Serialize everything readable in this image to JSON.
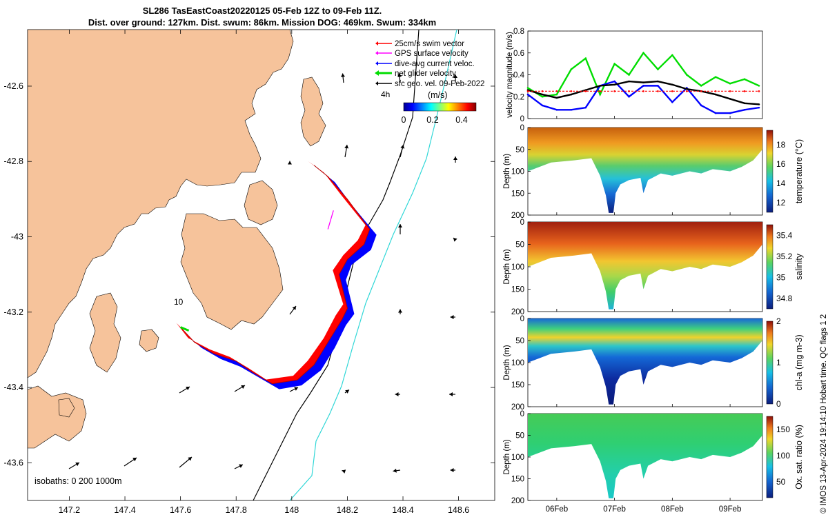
{
  "title": {
    "line1": "SL286 TasEastCoast20220125 05-Feb 12Z to 09-Feb 11Z.",
    "line2": "Dist. over ground: 127km. Dist. swum: 86km. Mission DOG: 469km. Swum: 334km"
  },
  "credit": "© IMOS 13-Apr-2024 19:14:10 Hobart time. QC flags 1  2",
  "colors": {
    "land": "#f6c39b",
    "track": "#0000ff",
    "swim": "#ff0000",
    "gps": "#ff00ff",
    "net": "#00dd00",
    "geo": "#000000",
    "isobath200": "#000000",
    "isobath1000": "#2fd7d7"
  },
  "chart_data": [
    {
      "type": "map",
      "xlim": [
        147.05,
        148.73
      ],
      "ylim": [
        -43.7,
        -42.45
      ],
      "xticks": [
        "147.2",
        "147.4",
        "147.6",
        "147.8",
        "148",
        "148.2",
        "148.4",
        "148.6"
      ],
      "yticks": [
        "-42.6",
        "-42.8",
        "-43",
        "-43.2",
        "-43.4",
        "-43.6"
      ],
      "legend": [
        "25cm/s swim vector",
        "GPS surface velocity",
        "dive-avg current veloc.",
        "net glider velocity",
        "sfc geo. vel. 09-Feb-2022"
      ],
      "legend_note": "4h",
      "colorbar": {
        "label": "(m/s)",
        "ticks": [
          "0",
          "0.2",
          "0.4"
        ],
        "range": [
          0,
          0.5
        ]
      },
      "isobath_label": "isobaths: 0   200  1000m",
      "annotation": "10",
      "glider_track": [
        [
          147.6,
          -43.24
        ],
        [
          147.65,
          -43.28
        ],
        [
          147.72,
          -43.31
        ],
        [
          147.8,
          -43.33
        ],
        [
          147.86,
          -43.36
        ],
        [
          147.93,
          -43.39
        ],
        [
          148.02,
          -43.38
        ],
        [
          148.08,
          -43.34
        ],
        [
          148.13,
          -43.28
        ],
        [
          148.18,
          -43.22
        ],
        [
          148.2,
          -43.19
        ],
        [
          148.17,
          -43.1
        ],
        [
          148.2,
          -43.06
        ],
        [
          148.26,
          -43.02
        ],
        [
          148.28,
          -42.98
        ],
        [
          148.2,
          -42.9
        ],
        [
          148.13,
          -42.84
        ],
        [
          148.08,
          -42.81
        ]
      ]
    },
    {
      "type": "line",
      "ylabel": "velocity magnitude (m/s)",
      "ylim": [
        0,
        0.8
      ],
      "yticks": [
        "0",
        "0.2",
        "0.4",
        "0.6",
        "0.8"
      ],
      "x": [
        5.5,
        5.75,
        6.0,
        6.25,
        6.5,
        6.75,
        7.0,
        7.25,
        7.5,
        7.75,
        8.0,
        8.25,
        8.5,
        8.75,
        9.0,
        9.25,
        9.5
      ],
      "series": [
        {
          "name": "net glider velocity",
          "color": "#00dd00",
          "values": [
            0.28,
            0.2,
            0.22,
            0.45,
            0.55,
            0.22,
            0.5,
            0.4,
            0.6,
            0.45,
            0.58,
            0.4,
            0.3,
            0.38,
            0.32,
            0.36,
            0.3
          ]
        },
        {
          "name": "dive-avg current veloc.",
          "color": "#0000ff",
          "values": [
            0.22,
            0.12,
            0.08,
            0.08,
            0.1,
            0.3,
            0.34,
            0.2,
            0.3,
            0.3,
            0.15,
            0.28,
            0.12,
            0.05,
            0.05,
            0.08,
            0.1
          ]
        },
        {
          "name": "sfc geo. vel.",
          "color": "#000000",
          "values": [
            0.26,
            0.22,
            0.19,
            0.22,
            0.26,
            0.3,
            0.31,
            0.34,
            0.33,
            0.34,
            0.31,
            0.27,
            0.25,
            0.22,
            0.18,
            0.14,
            0.13
          ]
        },
        {
          "name": "25cm/s swim vector",
          "color": "#ff0000",
          "values": [
            0.25,
            0.25,
            0.25,
            0.25,
            0.25,
            0.25,
            0.25,
            0.25,
            0.25,
            0.25,
            0.25,
            0.25,
            0.25,
            0.25,
            0.25,
            0.25,
            0.25
          ]
        }
      ]
    },
    {
      "type": "heatmap",
      "variable": "temperature",
      "ylabel": "Depth (m)",
      "clabel": "temperature (°C)",
      "ylim": [
        200,
        0
      ],
      "yticks": [
        "0",
        "50",
        "100",
        "150",
        "200"
      ],
      "cticks": [
        "12",
        "14",
        "16",
        "18"
      ],
      "crange": [
        11,
        19.5
      ]
    },
    {
      "type": "heatmap",
      "variable": "salinity",
      "ylabel": "Depth (m)",
      "clabel": "salinity",
      "ylim": [
        200,
        0
      ],
      "yticks": [
        "0",
        "50",
        "100",
        "150",
        "200"
      ],
      "cticks": [
        "34.8",
        "35",
        "35.2",
        "35.4"
      ],
      "crange": [
        34.7,
        35.5
      ]
    },
    {
      "type": "heatmap",
      "variable": "chl-a",
      "ylabel": "Depth (m)",
      "clabel": "chl-a (mg m-3)",
      "ylim": [
        200,
        0
      ],
      "yticks": [
        "0",
        "50",
        "100",
        "150",
        "200"
      ],
      "cticks": [
        "0",
        "1",
        "2"
      ],
      "crange": [
        0,
        2
      ]
    },
    {
      "type": "heatmap",
      "variable": "oxygen saturation",
      "ylabel": "Depth (m)",
      "clabel": "Ox. sat. ratio (%)",
      "ylim": [
        200,
        0
      ],
      "yticks": [
        "0",
        "50",
        "100",
        "150",
        "200"
      ],
      "cticks": [
        "50",
        "100",
        "150"
      ],
      "crange": [
        20,
        175
      ],
      "xticks": [
        "06Feb",
        "07Feb",
        "08Feb",
        "09Feb"
      ]
    }
  ]
}
